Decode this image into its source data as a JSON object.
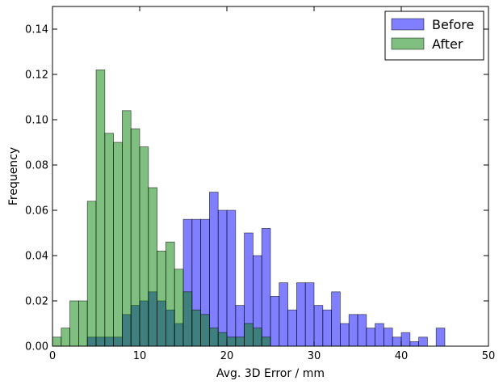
{
  "chart_data": {
    "type": "histogram",
    "title": "",
    "xlabel": "Avg. 3D Error / mm",
    "ylabel": "Frequency",
    "xlim": [
      0,
      50
    ],
    "ylim": [
      0,
      0.15
    ],
    "xticks": [
      "0",
      "10",
      "20",
      "30",
      "40",
      "50"
    ],
    "yticks": [
      "0.00",
      "0.02",
      "0.04",
      "0.06",
      "0.08",
      "0.10",
      "0.12",
      "0.14"
    ],
    "legend_position": "top-right",
    "bin_width": 1,
    "bin_starts": [
      0,
      1,
      2,
      3,
      4,
      5,
      6,
      7,
      8,
      9,
      10,
      11,
      12,
      13,
      14,
      15,
      16,
      17,
      18,
      19,
      20,
      21,
      22,
      23,
      24,
      25,
      26,
      27,
      28,
      29,
      30,
      31,
      32,
      33,
      34,
      35,
      36,
      37,
      38,
      39,
      40,
      41,
      42,
      43,
      44
    ],
    "series": [
      {
        "name": "Before",
        "color": "#0000ff",
        "opacity": 0.5,
        "values": [
          0,
          0,
          0,
          0,
          0.004,
          0.004,
          0.004,
          0.004,
          0.014,
          0.018,
          0.02,
          0.024,
          0.02,
          0.016,
          0.01,
          0.056,
          0.056,
          0.056,
          0.068,
          0.06,
          0.06,
          0.018,
          0.05,
          0.04,
          0.052,
          0.022,
          0.028,
          0.016,
          0.028,
          0.028,
          0.018,
          0.016,
          0.024,
          0.01,
          0.014,
          0.014,
          0.008,
          0.01,
          0.008,
          0.004,
          0.006,
          0.002,
          0.004,
          0,
          0.008
        ]
      },
      {
        "name": "After",
        "color": "#008000",
        "opacity": 0.5,
        "values": [
          0.004,
          0.008,
          0.02,
          0.02,
          0.064,
          0.122,
          0.094,
          0.09,
          0.104,
          0.096,
          0.088,
          0.07,
          0.042,
          0.046,
          0.034,
          0.024,
          0.016,
          0.014,
          0.008,
          0.006,
          0.004,
          0.004,
          0.01,
          0.008,
          0.004,
          0,
          0,
          0,
          0,
          0,
          0,
          0,
          0,
          0,
          0,
          0,
          0,
          0,
          0,
          0,
          0,
          0,
          0,
          0,
          0
        ]
      }
    ]
  }
}
